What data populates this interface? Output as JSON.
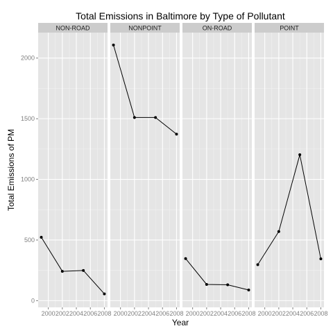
{
  "chart_data": {
    "type": "line",
    "title": "Total Emissions in Baltimore by Type of Pollutant",
    "xlabel": "Year",
    "ylabel": "Total Emissions of PM",
    "x": [
      1999,
      2002,
      2005,
      2008
    ],
    "x_tick_labels": [
      "2000",
      "2002",
      "2004",
      "2006",
      "2008"
    ],
    "x_tick_values": [
      2000,
      2002,
      2004,
      2006,
      2008
    ],
    "xlim": [
      1998.55,
      2008.45
    ],
    "y_tick_labels": [
      "0",
      "500",
      "1000",
      "1500",
      "2000"
    ],
    "y_tick_values": [
      0,
      500,
      1000,
      1500,
      2000
    ],
    "ylim": [
      -55,
      2210
    ],
    "grid": true,
    "facets": [
      {
        "label": "NON-ROAD",
        "values": [
          523,
          242,
          249,
          56
        ]
      },
      {
        "label": "NONPOINT",
        "values": [
          2108,
          1510,
          1510,
          1373
        ]
      },
      {
        "label": "ON-ROAD",
        "values": [
          347,
          134,
          131,
          88
        ]
      },
      {
        "label": "POINT",
        "values": [
          297,
          570,
          1203,
          345
        ]
      }
    ]
  }
}
